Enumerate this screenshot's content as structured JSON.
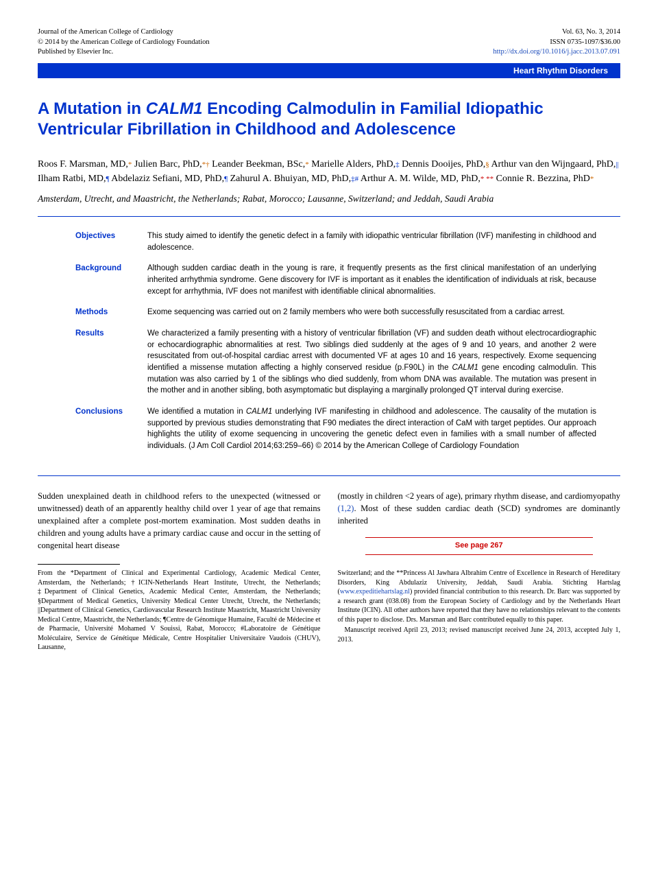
{
  "header": {
    "journal_line1": "Journal of the American College of Cardiology",
    "journal_line2": "© 2014 by the American College of Cardiology Foundation",
    "journal_line3": "Published by Elsevier Inc.",
    "vol_line": "Vol. 63, No. 3, 2014",
    "issn_line": "ISSN 0735-1097/$36.00",
    "doi": "http://dx.doi.org/10.1016/j.jacc.2013.07.091"
  },
  "category": "Heart Rhythm Disorders",
  "title_part1": "A Mutation in ",
  "title_italic": "CALM1",
  "title_part2": " Encoding Calmodulin in Familial Idiopathic Ventricular Fibrillation in Childhood and Adolescence",
  "authors_html": "Roos F. Marsman, MD,* Julien Barc, PhD,*† Leander Beekman, BSc,* Marielle Alders, PhD,‡ Dennis Dooijes, PhD,§ Arthur van den Wijngaard, PhD,|| Ilham Ratbi, MD,¶ Abdelaziz Sefiani, MD, PhD,¶ Zahurul A. Bhuiyan, MD, PhD,‡# Arthur A. M. Wilde, MD, PhD,* ** Connie R. Bezzina, PhD*",
  "authors": [
    {
      "name": "Roos F. Marsman, MD,",
      "aff": "*",
      "color": "orange"
    },
    {
      "name": " Julien Barc, PhD,",
      "aff": "*†",
      "color": "orange"
    },
    {
      "name": " Leander Beekman, BSc,",
      "aff": "*",
      "color": "orange"
    },
    {
      "name": " Marielle Alders, PhD,",
      "aff": "‡",
      "color": "blue"
    },
    {
      "name": " Dennis Dooijes, PhD,",
      "aff": "§",
      "color": "orange"
    },
    {
      "name": " Arthur van den Wijngaard, PhD,",
      "aff": "||",
      "color": "blue"
    },
    {
      "name": " Ilham Ratbi, MD,",
      "aff": "¶",
      "color": "blue"
    },
    {
      "name": " Abdelaziz Sefiani, MD, PhD,",
      "aff": "¶",
      "color": "blue"
    },
    {
      "name": " Zahurul A. Bhuiyan, MD, PhD,",
      "aff": "‡#",
      "color": "blue"
    },
    {
      "name": " Arthur A. M. Wilde, MD, PhD,",
      "aff": "* **",
      "color": "red"
    },
    {
      "name": " Connie R. Bezzina, PhD",
      "aff": "*",
      "color": "orange"
    }
  ],
  "locations": "Amsterdam, Utrecht, and Maastricht, the Netherlands; Rabat, Morocco; Lausanne, Switzerland; and Jeddah, Saudi Arabia",
  "abstract": {
    "objectives": {
      "label": "Objectives",
      "text": "This study aimed to identify the genetic defect in a family with idiopathic ventricular fibrillation (IVF) manifesting in childhood and adolescence."
    },
    "background": {
      "label": "Background",
      "text": "Although sudden cardiac death in the young is rare, it frequently presents as the first clinical manifestation of an underlying inherited arrhythmia syndrome. Gene discovery for IVF is important as it enables the identification of individuals at risk, because except for arrhythmia, IVF does not manifest with identifiable clinical abnormalities."
    },
    "methods": {
      "label": "Methods",
      "text": "Exome sequencing was carried out on 2 family members who were both successfully resuscitated from a cardiac arrest."
    },
    "results": {
      "label": "Results",
      "text_part1": "We characterized a family presenting with a history of ventricular fibrillation (VF) and sudden death without electrocardiographic or echocardiographic abnormalities at rest. Two siblings died suddenly at the ages of 9 and 10 years, and another 2 were resuscitated from out-of-hospital cardiac arrest with documented VF at ages 10 and 16 years, respectively. Exome sequencing identified a missense mutation affecting a highly conserved residue (p.F90L) in the ",
      "text_italic": "CALM1",
      "text_part2": " gene encoding calmodulin. This mutation was also carried by 1 of the siblings who died suddenly, from whom DNA was available. The mutation was present in the mother and in another sibling, both asymptomatic but displaying a marginally prolonged QT interval during exercise."
    },
    "conclusions": {
      "label": "Conclusions",
      "text_part1": "We identified a mutation in ",
      "text_italic": "CALM1",
      "text_part2": " underlying IVF manifesting in childhood and adolescence. The causality of the mutation is supported by previous studies demonstrating that F90 mediates the direct interaction of CaM with target peptides. Our approach highlights the utility of exome sequencing in uncovering the genetic defect even in families with a small number of affected individuals.   (J Am Coll Cardiol 2014;63:259–66) © 2014 by the American College of Cardiology Foundation"
    }
  },
  "body": {
    "left": "Sudden unexplained death in childhood refers to the unexpected (witnessed or unwitnessed) death of an apparently healthy child over 1 year of age that remains unexplained after a complete post-mortem examination. Most sudden deaths in children and young adults have a primary cardiac cause and occur in the setting of congenital heart disease",
    "right_part1": "(mostly in children <2 years of age), primary rhythm disease, and cardiomyopathy ",
    "right_ref": "(1,2)",
    "right_part2": ". Most of these sudden cardiac death (SCD) syndromes are dominantly inherited"
  },
  "see_page": "See page 267",
  "affiliations": {
    "left": "From the *Department of Clinical and Experimental Cardiology, Academic Medical Center, Amsterdam, the Netherlands; †ICIN-Netherlands Heart Institute, Utrecht, the Netherlands; ‡Department of Clinical Genetics, Academic Medical Center, Amsterdam, the Netherlands; §Department of Medical Genetics, University Medical Center Utrecht, Utrecht, the Netherlands; ||Department of Clinical Genetics, Cardiovascular Research Institute Maastricht, Maastricht University Medical Centre, Maastricht, the Netherlands; ¶Centre de Génomique Humaine, Faculté de Médecine et de Pharmacie, Université Mohamed V Souissi, Rabat, Morocco; #Laboratoire de Génétique Moléculaire, Service de Génétique Médicale, Centre Hospitalier Universitaire Vaudois (CHUV), Lausanne,",
    "right_part1": "Switzerland; and the **Princess Al Jawhara Albrahim Centre of Excellence in Research of Hereditary Disorders, King Abdulaziz University, Jeddah, Saudi Arabia. Stichting Hartslag (",
    "right_link": "www.expeditiehartslag.nl",
    "right_part2": ") provided financial contribution to this research. Dr. Barc was supported by a research grant (038.08) from the European Society of Cardiology and by the Netherlands Heart Institute (ICIN). All other authors have reported that they have no relationships relevant to the contents of this paper to disclose. Drs. Marsman and Barc contributed equally to this paper.",
    "right_received": "Manuscript received April 23, 2013; revised manuscript received June 24, 2013, accepted July 1, 2013."
  }
}
